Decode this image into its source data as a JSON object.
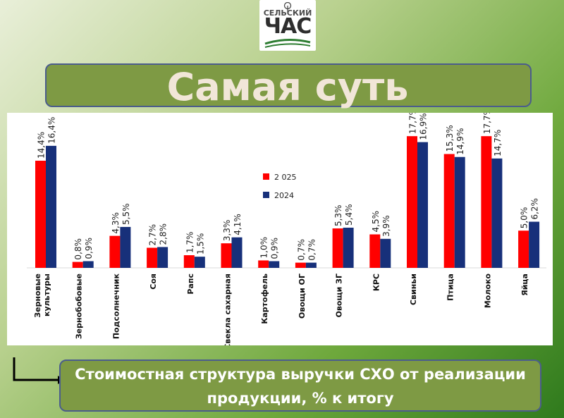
{
  "logo": {
    "top_text": "СЕЛЬСКИЙ",
    "main_text": "ЧАС"
  },
  "title": "Самая суть",
  "caption": "Стоимостная структура выручки СХО от реализации продукции, % к итогу",
  "colors": {
    "series_2025": "#ff0000",
    "series_2024": "#17307a",
    "background": "#6ea83c",
    "box": "#7e9a44"
  },
  "chart_data": {
    "type": "bar",
    "categories": [
      "Зерновые культуры",
      "Зернобобовые",
      "Подсолнечник",
      "Соя",
      "Рапс",
      "Свекла сахарная",
      "Картофель",
      "Овощи ОГ",
      "Овощи ЗГ",
      "КРС",
      "Свиньи",
      "Птица",
      "Молоко",
      "Яйца"
    ],
    "series": [
      {
        "name": "2 025",
        "values": [
          14.4,
          0.8,
          4.3,
          2.7,
          1.7,
          3.3,
          1.0,
          0.7,
          5.3,
          4.5,
          17.7,
          15.3,
          17.7,
          5.0
        ],
        "labels": [
          "14,4%",
          "0,8%",
          "4,3%",
          "2,7%",
          "1,7%",
          "3,3%",
          "1,0%",
          "0,7%",
          "5,3%",
          "4,5%",
          "17,7%",
          "15,3%",
          "17,7%",
          "5,0%"
        ]
      },
      {
        "name": "2024",
        "values": [
          16.4,
          0.9,
          5.5,
          2.8,
          1.5,
          4.1,
          0.9,
          0.7,
          5.4,
          3.9,
          16.9,
          14.9,
          14.7,
          6.2
        ],
        "labels": [
          "16,4%",
          "0,9%",
          "5,5%",
          "2,8%",
          "1,5%",
          "4,1%",
          "0,9%",
          "0,7%",
          "5,4%",
          "3,9%",
          "16,9%",
          "14,9%",
          "14,7%",
          "6,2%"
        ]
      }
    ],
    "legend_position": "center",
    "ylim": [
      0,
      18
    ],
    "grid": false
  }
}
